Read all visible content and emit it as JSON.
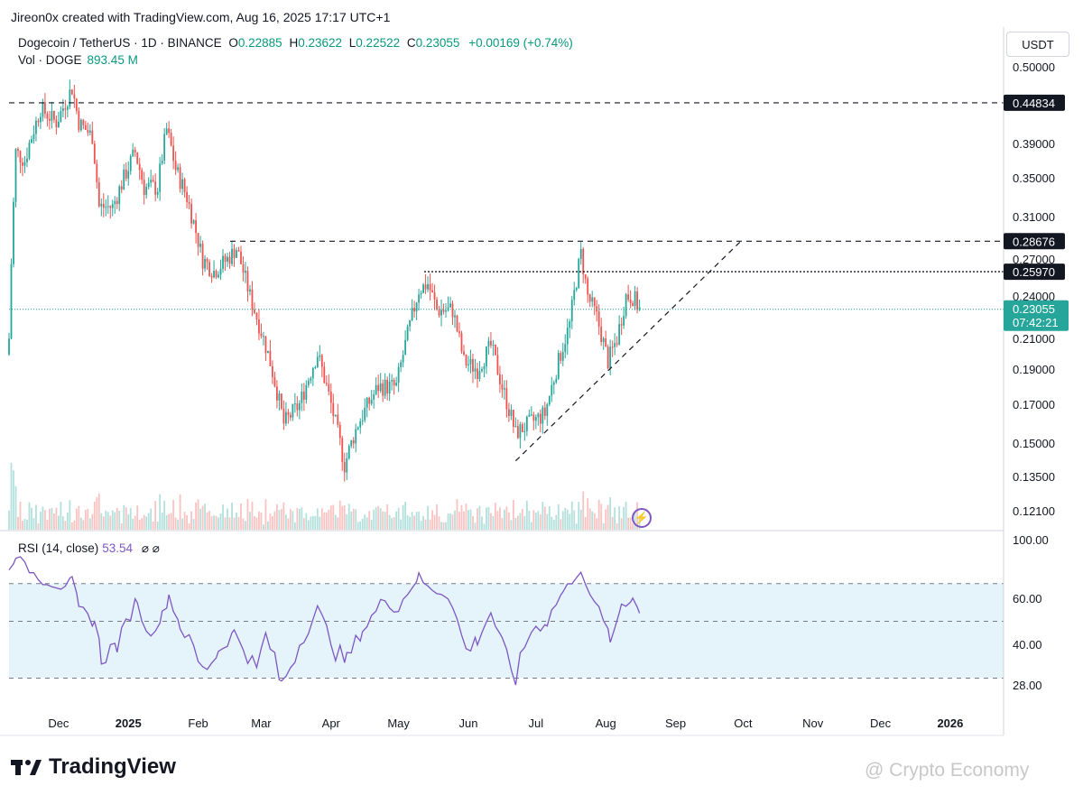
{
  "header": {
    "credit": "Jireon0x created with TradingView.com, Aug 16, 2025 17:17 UTC+1",
    "symbol_line": "Dogecoin / TetherUS · 1D · BINANCE",
    "ohlc": {
      "o_label": "O",
      "o_value": "0.22885",
      "h_label": "H",
      "h_value": "0.23622",
      "l_label": "L",
      "l_value": "0.22522",
      "c_label": "C",
      "c_value": "0.23055",
      "change": "+0.00169 (+0.74%)"
    },
    "volume_label": "Vol · DOGE",
    "volume_value": "893.45 M",
    "currency": "USDT"
  },
  "rsi_panel": {
    "label": "RSI (14, close)",
    "value": "53.54",
    "extra_symbols": "⌀ ⌀"
  },
  "footer": {
    "brand": "TradingView",
    "watermark": "@ Crypto Economy"
  },
  "colors": {
    "up": "#26a69a",
    "down": "#ef5350",
    "rsi_line": "#7e57c2",
    "rsi_band": "#e4f4fa",
    "price_line": "#26a69a",
    "hline_labels": "#131722"
  },
  "chart_data": [
    {
      "type": "candlestick",
      "title": "Dogecoin / TetherUS · 1D · BINANCE",
      "y_ticks": [
        "0.50000",
        "0.39000",
        "0.35000",
        "0.31000",
        "0.27000",
        "0.24000",
        "0.21000",
        "0.19000",
        "0.17000",
        "0.15000",
        "0.13500",
        "0.12100"
      ],
      "y_tick_values": [
        0.5,
        0.39,
        0.35,
        0.31,
        0.27,
        0.24,
        0.21,
        0.19,
        0.17,
        0.15,
        0.135,
        0.121
      ],
      "x_ticks": [
        "Dec",
        "2025",
        "Feb",
        "Mar",
        "Apr",
        "May",
        "Jun",
        "Jul",
        "Aug",
        "Sep",
        "Oct",
        "Nov",
        "Dec",
        "2026"
      ],
      "x_tick_dates": [
        "2024-12-01",
        "2025-01-01",
        "2025-02-01",
        "2025-03-01",
        "2025-04-01",
        "2025-05-01",
        "2025-06-01",
        "2025-07-01",
        "2025-08-01",
        "2025-09-01",
        "2025-10-01",
        "2025-11-01",
        "2025-12-01",
        "2026-01-01"
      ],
      "price_levels": [
        {
          "value": 0.44834,
          "label": "0.44834",
          "style": "dashed"
        },
        {
          "value": 0.28676,
          "label": "0.28676",
          "style": "dashed"
        },
        {
          "value": 0.2597,
          "label": "0.25970",
          "style": "dotted"
        }
      ],
      "current_price": {
        "value": 0.23055,
        "label": "0.23055",
        "countdown": "07:42:21"
      },
      "trendline": {
        "from": {
          "date": "2025-06-22",
          "price": 0.142
        },
        "to": {
          "date": "2025-09-30",
          "price": 0.28676
        }
      },
      "close_path": [
        {
          "date": "2024-11-09",
          "price": 0.21
        },
        {
          "date": "2024-11-12",
          "price": 0.38
        },
        {
          "date": "2024-11-16",
          "price": 0.37
        },
        {
          "date": "2024-11-23",
          "price": 0.44
        },
        {
          "date": "2024-11-30",
          "price": 0.42
        },
        {
          "date": "2024-12-07",
          "price": 0.47
        },
        {
          "date": "2024-12-10",
          "price": 0.42
        },
        {
          "date": "2024-12-16",
          "price": 0.4
        },
        {
          "date": "2024-12-19",
          "price": 0.32
        },
        {
          "date": "2024-12-25",
          "price": 0.32
        },
        {
          "date": "2025-01-04",
          "price": 0.38
        },
        {
          "date": "2025-01-08",
          "price": 0.34
        },
        {
          "date": "2025-01-14",
          "price": 0.34
        },
        {
          "date": "2025-01-18",
          "price": 0.41
        },
        {
          "date": "2025-01-22",
          "price": 0.36
        },
        {
          "date": "2025-01-27",
          "price": 0.33
        },
        {
          "date": "2025-02-03",
          "price": 0.27
        },
        {
          "date": "2025-02-08",
          "price": 0.26
        },
        {
          "date": "2025-02-14",
          "price": 0.27
        },
        {
          "date": "2025-02-18",
          "price": 0.28
        },
        {
          "date": "2025-02-24",
          "price": 0.24
        },
        {
          "date": "2025-03-04",
          "price": 0.2
        },
        {
          "date": "2025-03-11",
          "price": 0.16
        },
        {
          "date": "2025-03-18",
          "price": 0.17
        },
        {
          "date": "2025-03-26",
          "price": 0.2
        },
        {
          "date": "2025-04-01",
          "price": 0.17
        },
        {
          "date": "2025-04-07",
          "price": 0.14
        },
        {
          "date": "2025-04-13",
          "price": 0.16
        },
        {
          "date": "2025-04-22",
          "price": 0.18
        },
        {
          "date": "2025-04-30",
          "price": 0.18
        },
        {
          "date": "2025-05-10",
          "price": 0.245
        },
        {
          "date": "2025-05-14",
          "price": 0.25
        },
        {
          "date": "2025-05-18",
          "price": 0.23
        },
        {
          "date": "2025-05-25",
          "price": 0.23
        },
        {
          "date": "2025-05-30",
          "price": 0.195
        },
        {
          "date": "2025-06-05",
          "price": 0.19
        },
        {
          "date": "2025-06-11",
          "price": 0.205
        },
        {
          "date": "2025-06-16",
          "price": 0.18
        },
        {
          "date": "2025-06-22",
          "price": 0.155
        },
        {
          "date": "2025-06-28",
          "price": 0.16
        },
        {
          "date": "2025-07-05",
          "price": 0.165
        },
        {
          "date": "2025-07-10",
          "price": 0.19
        },
        {
          "date": "2025-07-16",
          "price": 0.22
        },
        {
          "date": "2025-07-21",
          "price": 0.275
        },
        {
          "date": "2025-07-24",
          "price": 0.24
        },
        {
          "date": "2025-07-28",
          "price": 0.225
        },
        {
          "date": "2025-08-02",
          "price": 0.195
        },
        {
          "date": "2025-08-06",
          "price": 0.21
        },
        {
          "date": "2025-08-10",
          "price": 0.24
        },
        {
          "date": "2025-08-13",
          "price": 0.24
        },
        {
          "date": "2025-08-16",
          "price": 0.23055
        }
      ]
    },
    {
      "type": "line",
      "title": "RSI (14, close)",
      "y_ticks": [
        "100.00",
        "60.00",
        "40.00",
        "28.00"
      ],
      "y_tick_values": [
        100,
        60,
        40,
        28
      ],
      "band": {
        "upper": 70,
        "middle": 50,
        "lower": 30
      },
      "series": [
        {
          "name": "RSI (14, close)",
          "points": [
            {
              "date": "2024-11-09",
              "value": 78
            },
            {
              "date": "2024-11-12",
              "value": 90
            },
            {
              "date": "2024-11-16",
              "value": 82
            },
            {
              "date": "2024-11-24",
              "value": 72
            },
            {
              "date": "2024-12-02",
              "value": 68
            },
            {
              "date": "2024-12-07",
              "value": 72
            },
            {
              "date": "2024-12-10",
              "value": 55
            },
            {
              "date": "2024-12-17",
              "value": 50
            },
            {
              "date": "2024-12-20",
              "value": 36
            },
            {
              "date": "2024-12-27",
              "value": 40
            },
            {
              "date": "2025-01-05",
              "value": 60
            },
            {
              "date": "2025-01-09",
              "value": 44
            },
            {
              "date": "2025-01-16",
              "value": 52
            },
            {
              "date": "2025-01-19",
              "value": 62
            },
            {
              "date": "2025-01-24",
              "value": 48
            },
            {
              "date": "2025-02-03",
              "value": 32
            },
            {
              "date": "2025-02-10",
              "value": 38
            },
            {
              "date": "2025-02-17",
              "value": 45
            },
            {
              "date": "2025-02-27",
              "value": 32
            },
            {
              "date": "2025-03-03",
              "value": 44
            },
            {
              "date": "2025-03-10",
              "value": 28
            },
            {
              "date": "2025-03-18",
              "value": 40
            },
            {
              "date": "2025-03-26",
              "value": 55
            },
            {
              "date": "2025-04-03",
              "value": 38
            },
            {
              "date": "2025-04-08",
              "value": 35
            },
            {
              "date": "2025-04-15",
              "value": 46
            },
            {
              "date": "2025-04-25",
              "value": 60
            },
            {
              "date": "2025-05-01",
              "value": 55
            },
            {
              "date": "2025-05-10",
              "value": 75
            },
            {
              "date": "2025-05-14",
              "value": 67
            },
            {
              "date": "2025-05-23",
              "value": 62
            },
            {
              "date": "2025-05-31",
              "value": 38
            },
            {
              "date": "2025-06-05",
              "value": 42
            },
            {
              "date": "2025-06-11",
              "value": 54
            },
            {
              "date": "2025-06-16",
              "value": 40
            },
            {
              "date": "2025-06-22",
              "value": 30
            },
            {
              "date": "2025-06-29",
              "value": 46
            },
            {
              "date": "2025-07-06",
              "value": 50
            },
            {
              "date": "2025-07-13",
              "value": 64
            },
            {
              "date": "2025-07-21",
              "value": 80
            },
            {
              "date": "2025-07-25",
              "value": 60
            },
            {
              "date": "2025-07-31",
              "value": 52
            },
            {
              "date": "2025-08-03",
              "value": 40
            },
            {
              "date": "2025-08-08",
              "value": 58
            },
            {
              "date": "2025-08-13",
              "value": 60
            },
            {
              "date": "2025-08-16",
              "value": 53.54
            }
          ]
        }
      ]
    }
  ]
}
